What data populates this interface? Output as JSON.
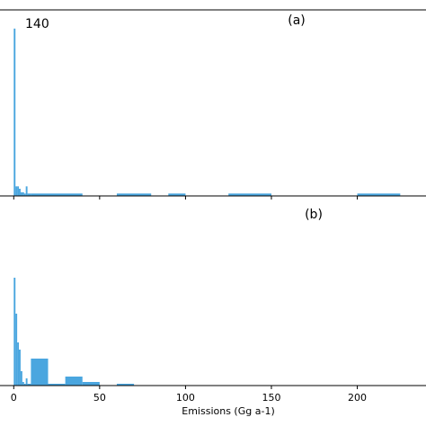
{
  "chart_data": [
    {
      "type": "bar",
      "panel_label": "(a)",
      "annotation": "140",
      "bar_color": "#4aa6df",
      "xlim": [
        -8,
        240
      ],
      "ylim": [
        0,
        150
      ],
      "xticks": [
        0,
        50,
        100,
        150,
        200
      ],
      "show_tick_labels": false,
      "bins": [
        {
          "x0": 0,
          "x1": 1,
          "y": 140
        },
        {
          "x0": 1,
          "x1": 2,
          "y": 8
        },
        {
          "x0": 2,
          "x1": 3,
          "y": 8
        },
        {
          "x0": 3,
          "x1": 4,
          "y": 6
        },
        {
          "x0": 4,
          "x1": 5,
          "y": 3
        },
        {
          "x0": 5,
          "x1": 6,
          "y": 3
        },
        {
          "x0": 6,
          "x1": 7,
          "y": 2
        },
        {
          "x0": 7,
          "x1": 8,
          "y": 8
        },
        {
          "x0": 8,
          "x1": 10,
          "y": 2
        },
        {
          "x0": 10,
          "x1": 40,
          "y": 2
        },
        {
          "x0": 60,
          "x1": 80,
          "y": 2
        },
        {
          "x0": 90,
          "x1": 100,
          "y": 2
        },
        {
          "x0": 125,
          "x1": 150,
          "y": 2
        },
        {
          "x0": 200,
          "x1": 225,
          "y": 2
        }
      ]
    },
    {
      "type": "bar",
      "panel_label": "(b)",
      "bar_color": "#4aa6df",
      "xlabel": "Emissions (Gg a-1)",
      "xlim": [
        -8,
        240
      ],
      "ylim": [
        0,
        150
      ],
      "xticks": [
        0,
        50,
        100,
        150,
        200
      ],
      "xtick_labels": [
        "0",
        "50",
        "100",
        "150",
        "200"
      ],
      "bins": [
        {
          "x0": 0,
          "x1": 1,
          "y": 120
        },
        {
          "x0": 1,
          "x1": 2,
          "y": 80
        },
        {
          "x0": 2,
          "x1": 3,
          "y": 48
        },
        {
          "x0": 3,
          "x1": 4,
          "y": 40
        },
        {
          "x0": 4,
          "x1": 5,
          "y": 16
        },
        {
          "x0": 5,
          "x1": 6,
          "y": 4
        },
        {
          "x0": 6,
          "x1": 7,
          "y": 2
        },
        {
          "x0": 7,
          "x1": 8,
          "y": 8
        },
        {
          "x0": 8,
          "x1": 10,
          "y": 2
        },
        {
          "x0": 10,
          "x1": 20,
          "y": 30
        },
        {
          "x0": 20,
          "x1": 30,
          "y": 2
        },
        {
          "x0": 30,
          "x1": 40,
          "y": 10
        },
        {
          "x0": 40,
          "x1": 50,
          "y": 4
        },
        {
          "x0": 60,
          "x1": 70,
          "y": 2
        }
      ]
    }
  ]
}
